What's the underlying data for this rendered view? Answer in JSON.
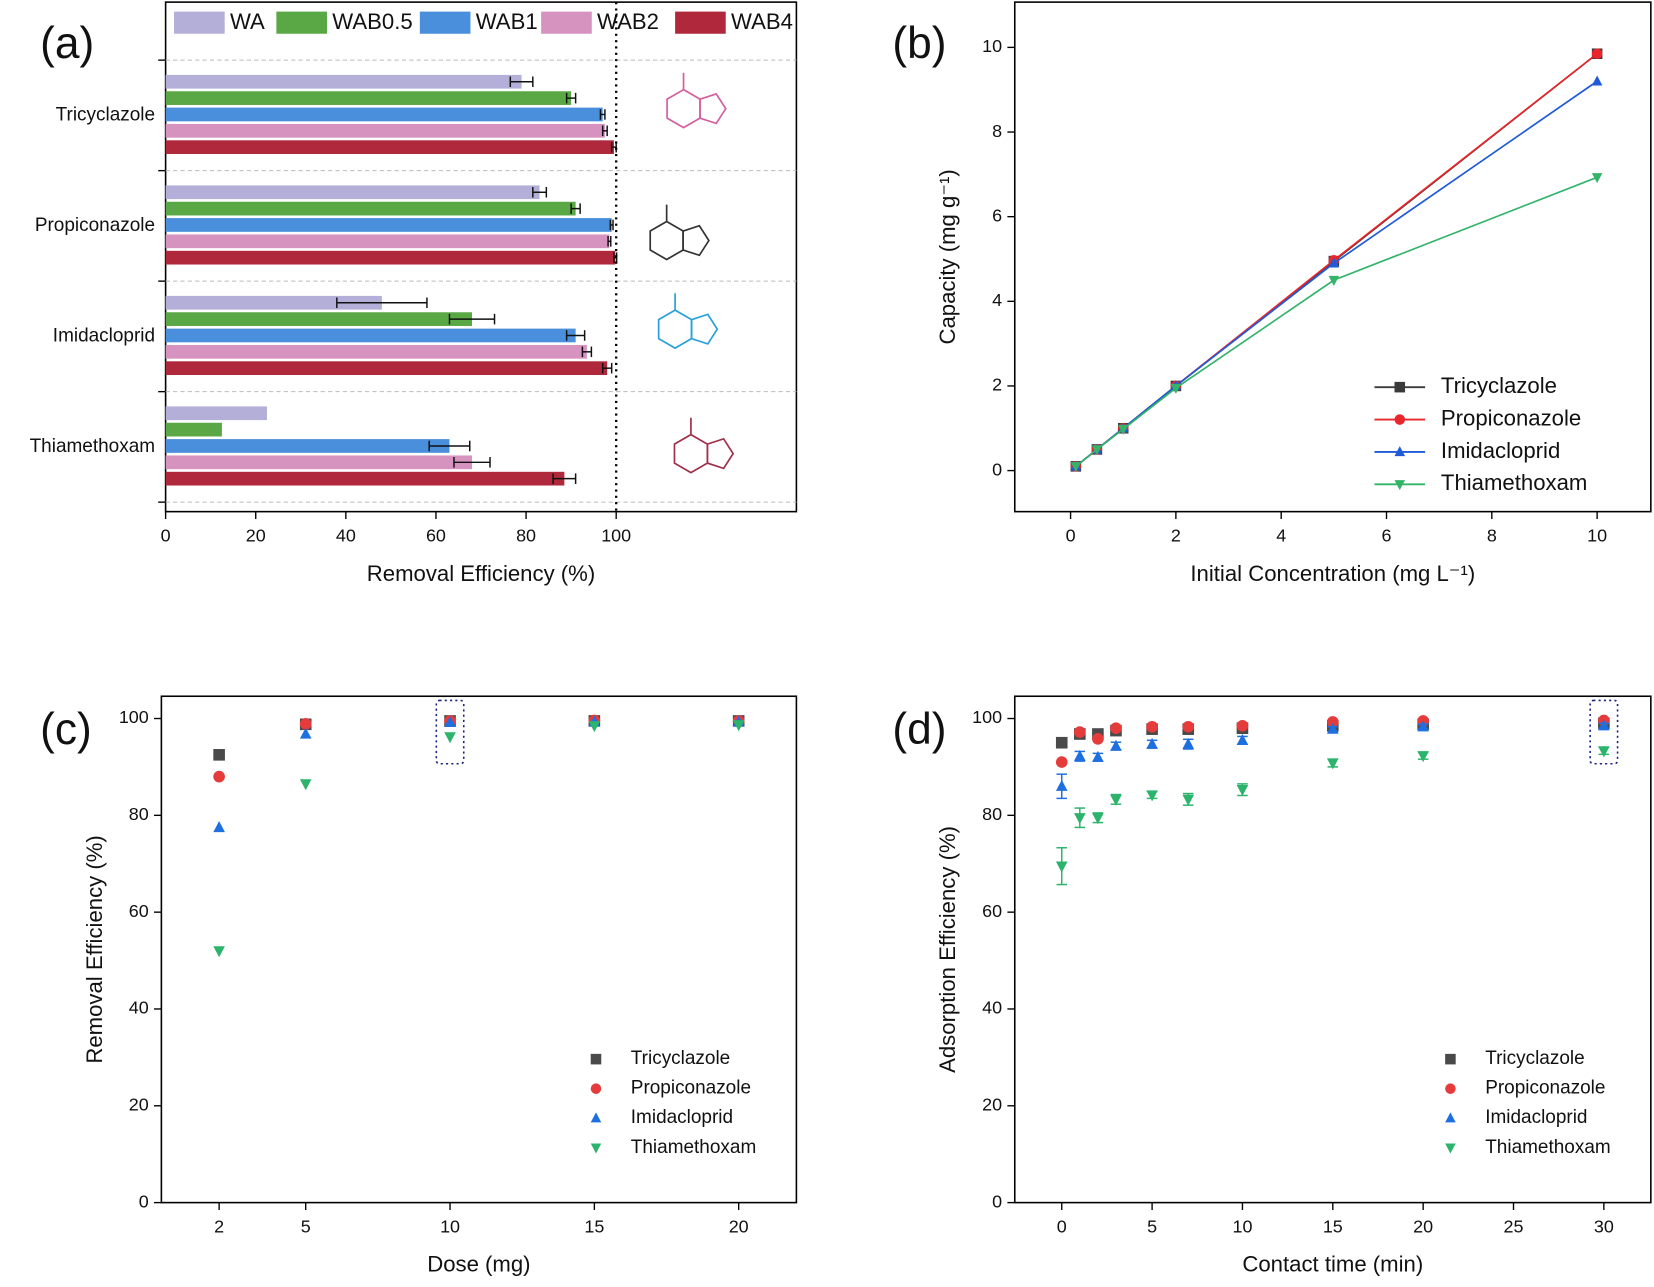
{
  "chart_data": [
    {
      "type": "hbar",
      "title": "(a)",
      "xlabel": "Removal Efficiency (%)",
      "categories": [
        "Tricyclazole",
        "Propiconazole",
        "Imidacloprid",
        "Thiamethoxam"
      ],
      "series": [
        {
          "name": "WA",
          "color": "#b4afd8",
          "values": [
            79,
            83,
            48,
            22.5
          ],
          "errors": [
            2.5,
            1.5,
            10,
            null
          ]
        },
        {
          "name": "WAB0.5",
          "color": "#5aa845",
          "values": [
            90,
            91,
            68,
            12.5
          ],
          "errors": [
            1,
            1,
            5,
            null
          ]
        },
        {
          "name": "WAB1",
          "color": "#4a8fdb",
          "values": [
            97,
            99,
            91,
            63
          ],
          "errors": [
            0.5,
            0.3,
            2,
            4.5
          ]
        },
        {
          "name": "WAB2",
          "color": "#d693bf",
          "values": [
            97.5,
            98.5,
            93.5,
            68
          ],
          "errors": [
            0.5,
            0.3,
            1,
            4
          ]
        },
        {
          "name": "WAB4",
          "color": "#b0283c",
          "values": [
            99.5,
            99.8,
            98,
            88.5
          ],
          "errors": [
            0.5,
            0.3,
            1,
            2.5
          ]
        }
      ],
      "xlim": [
        0,
        140
      ],
      "xticks": [
        0,
        20,
        40,
        60,
        80,
        100
      ],
      "reference_line": 100,
      "legend": "top"
    },
    {
      "type": "line",
      "title": "(b)",
      "xlabel": "Initial Concentration (mg L⁻¹)",
      "ylabel": "Capacity (mg g⁻¹)",
      "x": [
        0.1,
        0.5,
        1,
        2,
        5,
        10
      ],
      "series": [
        {
          "name": "Tricyclazole",
          "color": "#3a3a3a",
          "marker": "square",
          "values": [
            0.1,
            0.5,
            1,
            2,
            4.95,
            9.85
          ]
        },
        {
          "name": "Propiconazole",
          "color": "#e8262b",
          "marker": "circle",
          "values": [
            0.1,
            0.5,
            1,
            2,
            4.97,
            9.85
          ]
        },
        {
          "name": "Imidacloprid",
          "color": "#1f5bd6",
          "marker": "triangle-up",
          "values": [
            0.1,
            0.5,
            1,
            2,
            4.9,
            9.2
          ]
        },
        {
          "name": "Thiamethoxam",
          "color": "#34b36b",
          "marker": "triangle-down",
          "values": [
            0.1,
            0.5,
            0.98,
            1.95,
            4.5,
            6.93
          ]
        }
      ],
      "xlim": [
        -1.06,
        11.02
      ],
      "xticks": [
        0,
        2,
        4,
        6,
        8,
        10
      ],
      "ylim": [
        -0.97,
        11.07
      ],
      "yticks": [
        0,
        2,
        4,
        6,
        8,
        10
      ],
      "legend": "lower right"
    },
    {
      "type": "scatter",
      "title": "(c)",
      "xlabel": "Dose (mg)",
      "ylabel": "Removal Efficiency (%)",
      "x": [
        2,
        5,
        10,
        15,
        20
      ],
      "series": [
        {
          "name": "Tricyclazole",
          "color": "#4a4a4a",
          "marker": "square",
          "values": [
            92.5,
            98.8,
            99.5,
            99.5,
            99.5
          ]
        },
        {
          "name": "Propiconazole",
          "color": "#e53b3b",
          "marker": "circle",
          "values": [
            88,
            98.9,
            99.5,
            99.6,
            99.5
          ]
        },
        {
          "name": "Imidacloprid",
          "color": "#1e6fe0",
          "marker": "triangle-up",
          "values": [
            77.5,
            96.8,
            99.2,
            99.3,
            99.3
          ]
        },
        {
          "name": "Thiamethoxam",
          "color": "#2cb36c",
          "marker": "triangle-down",
          "values": [
            52,
            86.5,
            96.2,
            98.5,
            98.7
          ]
        }
      ],
      "xlim": [
        0,
        22
      ],
      "xticks": [
        2,
        5,
        10,
        15,
        20
      ],
      "ylim": [
        0,
        104.6
      ],
      "yticks": [
        0,
        20,
        40,
        60,
        80,
        100
      ],
      "legend": "lower right",
      "highlight_x": 10
    },
    {
      "type": "scatter",
      "title": "(d)",
      "xlabel": "Contact time (min)",
      "ylabel": "Adsorption Efficiency (%)",
      "x": [
        0,
        1,
        2,
        3,
        5,
        7,
        10,
        15,
        20,
        30
      ],
      "series": [
        {
          "name": "Tricyclazole",
          "color": "#4a4a4a",
          "marker": "square",
          "values": [
            95,
            96.8,
            96.8,
            97.5,
            97.8,
            97.8,
            98,
            98.5,
            98.8,
            99
          ]
        },
        {
          "name": "Propiconazole",
          "color": "#e53b3b",
          "marker": "circle",
          "values": [
            91,
            97.2,
            95.8,
            98,
            98.3,
            98.3,
            98.5,
            99.3,
            99.5,
            99.6
          ]
        },
        {
          "name": "Imidacloprid",
          "color": "#1e6fe0",
          "marker": "triangle-up",
          "values": [
            86,
            92.2,
            92,
            94.3,
            94.7,
            94.7,
            95.5,
            97.8,
            98.3,
            98.5
          ],
          "errors": [
            2.5,
            1,
            0.8,
            0.8,
            0.8,
            1,
            0.8,
            0.5,
            0.5,
            0.5
          ]
        },
        {
          "name": "Thiamethoxam",
          "color": "#2cb36c",
          "marker": "triangle-down",
          "values": [
            69.5,
            79.5,
            79.5,
            83.3,
            84.2,
            83.3,
            85.3,
            90.8,
            92.3,
            93.3
          ],
          "errors": [
            3.8,
            2,
            1,
            1,
            0.7,
            1.2,
            1.2,
            0.8,
            0.7,
            0.7
          ]
        }
      ],
      "xlim": [
        -2.6,
        32.6
      ],
      "xticks": [
        0,
        5,
        10,
        15,
        20,
        25,
        30
      ],
      "ylim": [
        0,
        104.6
      ],
      "yticks": [
        0,
        20,
        40,
        60,
        80,
        100
      ],
      "legend": "lower right",
      "highlight_x": 30
    }
  ]
}
